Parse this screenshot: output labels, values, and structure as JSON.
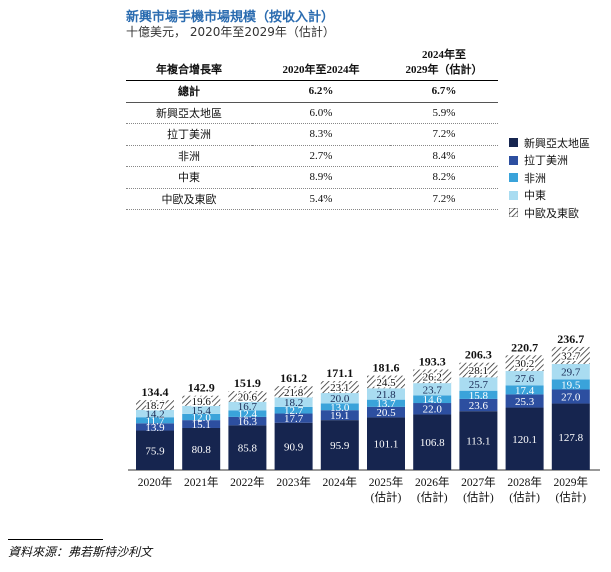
{
  "title": "新興市場手機市場規模（按收入計）",
  "subtitle": "十億美元， 2020年至2029年（估計）",
  "cagr_table": {
    "headers": [
      "年複合增長率",
      "2020年至2024年",
      "2024年至\n2029年（估計）"
    ],
    "rows": [
      {
        "region": "總計",
        "v1": "6.2%",
        "v2": "6.7%"
      },
      {
        "region": "新興亞太地區",
        "v1": "6.0%",
        "v2": "5.9%"
      },
      {
        "region": "拉丁美洲",
        "v1": "8.3%",
        "v2": "7.2%"
      },
      {
        "region": "非洲",
        "v1": "2.7%",
        "v2": "8.4%"
      },
      {
        "region": "中東",
        "v1": "8.9%",
        "v2": "8.2%"
      },
      {
        "region": "中歐及東歐",
        "v1": "5.4%",
        "v2": "7.2%"
      }
    ]
  },
  "colors": {
    "apac": "#16254f",
    "latam": "#2d4fa0",
    "africa": "#3aa3da",
    "middle_east": "#a9dcf1",
    "cee_hatch": "#333333"
  },
  "chart_data": {
    "type": "bar",
    "stacked": true,
    "categories": [
      "2020年",
      "2021年",
      "2022年",
      "2023年",
      "2024年",
      "2025年\n(估計)",
      "2026年\n(估計)",
      "2027年\n(估計)",
      "2028年\n(估計)",
      "2029年\n(估計)"
    ],
    "series": [
      {
        "key": "apac",
        "name": "新興亞太地區",
        "values": [
          75.9,
          80.8,
          85.8,
          90.9,
          95.9,
          101.1,
          106.8,
          113.1,
          120.1,
          127.8
        ]
      },
      {
        "key": "latam",
        "name": "拉丁美洲",
        "values": [
          13.9,
          15.1,
          16.3,
          17.7,
          19.1,
          20.5,
          22.0,
          23.6,
          25.3,
          27.0
        ]
      },
      {
        "key": "africa",
        "name": "非洲",
        "values": [
          11.7,
          12.0,
          12.4,
          12.7,
          13.0,
          13.7,
          14.6,
          15.8,
          17.4,
          19.5
        ]
      },
      {
        "key": "middle_east",
        "name": "中東",
        "values": [
          14.2,
          15.4,
          16.7,
          18.2,
          20.0,
          21.8,
          23.7,
          25.7,
          27.6,
          29.7
        ]
      },
      {
        "key": "cee",
        "name": "中歐及東歐",
        "values": [
          18.7,
          19.6,
          20.6,
          21.8,
          23.1,
          24.5,
          26.2,
          28.1,
          30.2,
          32.7
        ]
      }
    ],
    "totals": [
      134.4,
      142.9,
      151.9,
      161.2,
      171.1,
      181.6,
      193.3,
      206.3,
      220.7,
      236.7
    ],
    "unit": "十億美元"
  },
  "source": "資料來源：弗若斯特沙利文"
}
